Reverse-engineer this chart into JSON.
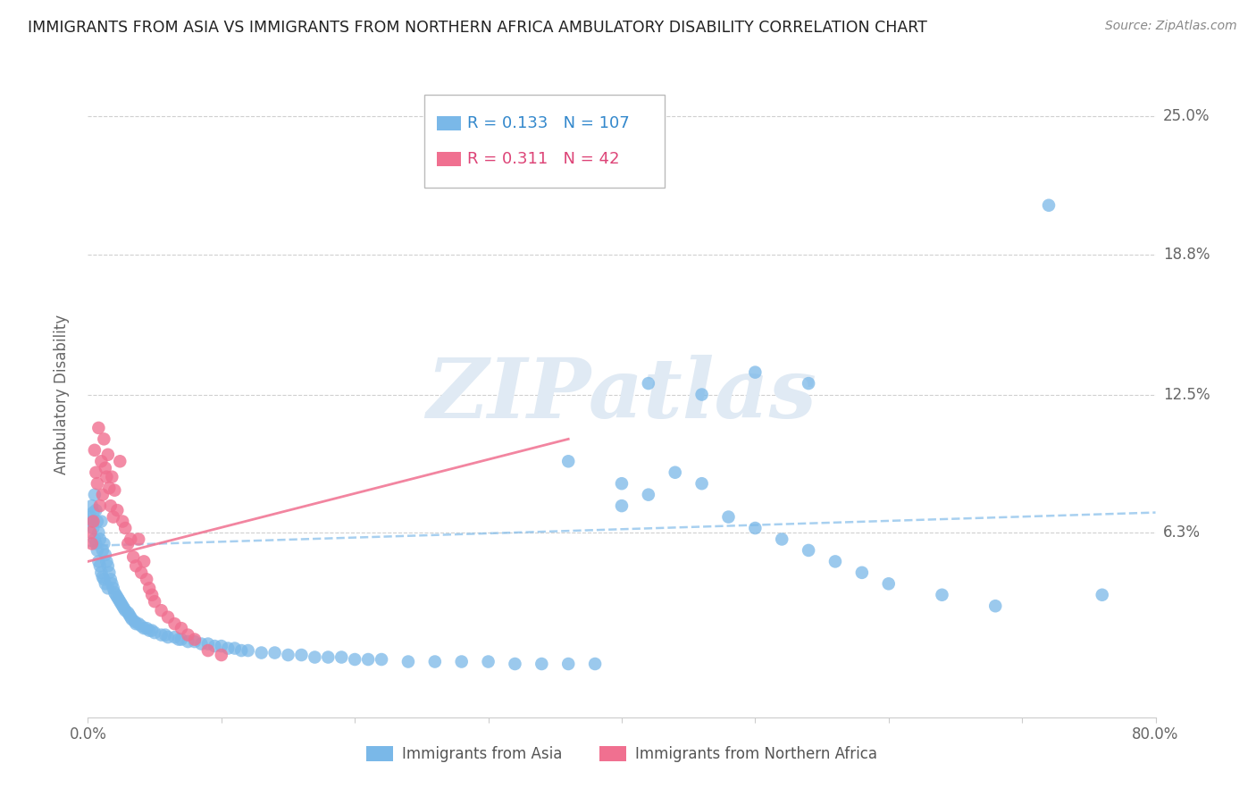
{
  "title": "IMMIGRANTS FROM ASIA VS IMMIGRANTS FROM NORTHERN AFRICA AMBULATORY DISABILITY CORRELATION CHART",
  "source": "Source: ZipAtlas.com",
  "ylabel": "Ambulatory Disability",
  "yticks": [
    "6.3%",
    "12.5%",
    "18.8%",
    "25.0%"
  ],
  "ytick_vals": [
    0.063,
    0.125,
    0.188,
    0.25
  ],
  "legend_asia_R": "0.133",
  "legend_asia_N": "107",
  "legend_africa_R": "0.311",
  "legend_africa_N": "42",
  "xlim": [
    0.0,
    0.8
  ],
  "ylim": [
    -0.02,
    0.27
  ],
  "asia_color": "#7ab8e8",
  "africa_color": "#f07090",
  "background_color": "#ffffff",
  "watermark_text": "ZIPatlas",
  "watermark_color": "#e0eaf4",
  "asia_trend_color": "#7ab8e8",
  "africa_trend_color": "#f07090",
  "asia_x": [
    0.002,
    0.003,
    0.003,
    0.004,
    0.004,
    0.005,
    0.005,
    0.006,
    0.006,
    0.007,
    0.007,
    0.008,
    0.008,
    0.009,
    0.009,
    0.01,
    0.01,
    0.011,
    0.011,
    0.012,
    0.012,
    0.013,
    0.013,
    0.014,
    0.015,
    0.015,
    0.016,
    0.017,
    0.018,
    0.019,
    0.02,
    0.021,
    0.022,
    0.023,
    0.024,
    0.025,
    0.026,
    0.027,
    0.028,
    0.03,
    0.031,
    0.032,
    0.033,
    0.035,
    0.036,
    0.038,
    0.04,
    0.042,
    0.044,
    0.046,
    0.048,
    0.05,
    0.055,
    0.058,
    0.06,
    0.065,
    0.068,
    0.07,
    0.075,
    0.08,
    0.085,
    0.09,
    0.095,
    0.1,
    0.105,
    0.11,
    0.115,
    0.12,
    0.13,
    0.14,
    0.15,
    0.16,
    0.17,
    0.18,
    0.19,
    0.2,
    0.21,
    0.22,
    0.24,
    0.26,
    0.28,
    0.3,
    0.32,
    0.34,
    0.36,
    0.38,
    0.4,
    0.42,
    0.44,
    0.46,
    0.48,
    0.5,
    0.52,
    0.54,
    0.56,
    0.58,
    0.6,
    0.64,
    0.68,
    0.72,
    0.76,
    0.42,
    0.46,
    0.5,
    0.54,
    0.36,
    0.4
  ],
  "asia_y": [
    0.07,
    0.075,
    0.068,
    0.072,
    0.065,
    0.08,
    0.06,
    0.073,
    0.058,
    0.068,
    0.055,
    0.063,
    0.05,
    0.06,
    0.048,
    0.068,
    0.045,
    0.055,
    0.043,
    0.058,
    0.042,
    0.053,
    0.04,
    0.05,
    0.048,
    0.038,
    0.045,
    0.042,
    0.04,
    0.038,
    0.036,
    0.035,
    0.034,
    0.033,
    0.032,
    0.031,
    0.03,
    0.029,
    0.028,
    0.027,
    0.026,
    0.025,
    0.024,
    0.023,
    0.022,
    0.022,
    0.021,
    0.02,
    0.02,
    0.019,
    0.019,
    0.018,
    0.017,
    0.017,
    0.016,
    0.016,
    0.015,
    0.015,
    0.014,
    0.014,
    0.013,
    0.013,
    0.012,
    0.012,
    0.011,
    0.011,
    0.01,
    0.01,
    0.009,
    0.009,
    0.008,
    0.008,
    0.007,
    0.007,
    0.007,
    0.006,
    0.006,
    0.006,
    0.005,
    0.005,
    0.005,
    0.005,
    0.004,
    0.004,
    0.004,
    0.004,
    0.075,
    0.08,
    0.09,
    0.085,
    0.07,
    0.065,
    0.06,
    0.055,
    0.05,
    0.045,
    0.04,
    0.035,
    0.03,
    0.21,
    0.035,
    0.13,
    0.125,
    0.135,
    0.13,
    0.095,
    0.085
  ],
  "africa_x": [
    0.002,
    0.003,
    0.004,
    0.005,
    0.006,
    0.007,
    0.008,
    0.009,
    0.01,
    0.011,
    0.012,
    0.013,
    0.014,
    0.015,
    0.016,
    0.017,
    0.018,
    0.019,
    0.02,
    0.022,
    0.024,
    0.026,
    0.028,
    0.03,
    0.032,
    0.034,
    0.036,
    0.038,
    0.04,
    0.042,
    0.044,
    0.046,
    0.048,
    0.05,
    0.055,
    0.06,
    0.065,
    0.07,
    0.075,
    0.08,
    0.09,
    0.1
  ],
  "africa_y": [
    0.063,
    0.058,
    0.068,
    0.1,
    0.09,
    0.085,
    0.11,
    0.075,
    0.095,
    0.08,
    0.105,
    0.092,
    0.088,
    0.098,
    0.083,
    0.075,
    0.088,
    0.07,
    0.082,
    0.073,
    0.095,
    0.068,
    0.065,
    0.058,
    0.06,
    0.052,
    0.048,
    0.06,
    0.045,
    0.05,
    0.042,
    0.038,
    0.035,
    0.032,
    0.028,
    0.025,
    0.022,
    0.02,
    0.017,
    0.015,
    0.01,
    0.008
  ]
}
